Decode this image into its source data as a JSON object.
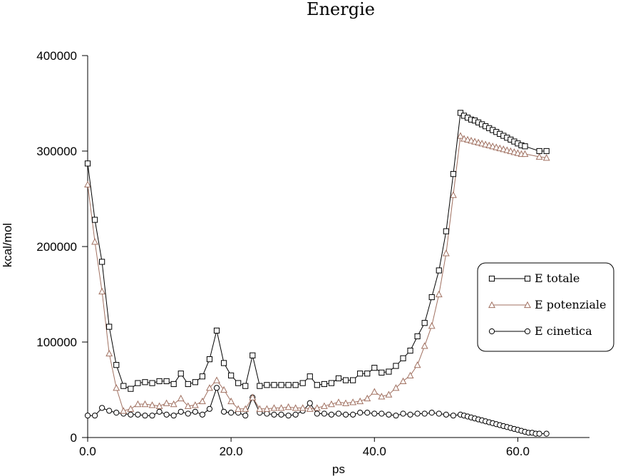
{
  "chart_data": {
    "type": "line",
    "title": "Energie",
    "xlabel": "ps",
    "ylabel": "kcal/mol",
    "xlim": [
      0,
      70
    ],
    "ylim": [
      0,
      400000
    ],
    "x_ticks": [
      0,
      20,
      40,
      60
    ],
    "x_tick_labels": [
      "0.0",
      "20.0",
      "40.0",
      "60.0"
    ],
    "y_ticks": [
      0,
      100000,
      200000,
      300000,
      400000
    ],
    "y_tick_labels": [
      "0",
      "100000",
      "200000",
      "300000",
      "400000"
    ],
    "grid": false,
    "legend_position": "right",
    "series": [
      {
        "name": "E totale",
        "marker": "square",
        "color": "#000000",
        "x": [
          0,
          1,
          2,
          3,
          4,
          5,
          6,
          7,
          8,
          9,
          10,
          11,
          12,
          13,
          14,
          15,
          16,
          17,
          18,
          19,
          20,
          21,
          22,
          23,
          24,
          25,
          26,
          27,
          28,
          29,
          30,
          31,
          32,
          33,
          34,
          35,
          36,
          37,
          38,
          39,
          40,
          41,
          42,
          43,
          44,
          45,
          46,
          47,
          48,
          49,
          50,
          51,
          52,
          52.5,
          53,
          53.5,
          54,
          54.5,
          55,
          55.5,
          56,
          56.5,
          57,
          57.5,
          58,
          58.5,
          59,
          59.5,
          60,
          60.5,
          61,
          63,
          64
        ],
        "y": [
          287000,
          228000,
          184000,
          116000,
          76000,
          54000,
          51000,
          57000,
          58000,
          57000,
          59000,
          59000,
          56000,
          67000,
          56000,
          58000,
          64000,
          82000,
          112000,
          78000,
          65000,
          57000,
          54000,
          86000,
          54000,
          55000,
          55000,
          55000,
          55000,
          55000,
          57000,
          64000,
          55000,
          56000,
          57000,
          62000,
          60000,
          60000,
          67000,
          67000,
          73000,
          68000,
          69000,
          75000,
          83000,
          91000,
          106000,
          120000,
          147000,
          175000,
          216000,
          276000,
          340000,
          337000,
          335000,
          333000,
          332000,
          330000,
          328000,
          326000,
          324000,
          322000,
          320000,
          318000,
          316000,
          314000,
          312000,
          310000,
          308000,
          306000,
          305000,
          300000,
          300000
        ]
      },
      {
        "name": "E potenziale",
        "marker": "triangle",
        "color": "#a07060",
        "x": [
          0,
          1,
          2,
          3,
          4,
          5,
          6,
          7,
          8,
          9,
          10,
          11,
          12,
          13,
          14,
          15,
          16,
          17,
          18,
          19,
          20,
          21,
          22,
          23,
          24,
          25,
          26,
          27,
          28,
          29,
          30,
          31,
          32,
          33,
          34,
          35,
          36,
          37,
          38,
          39,
          40,
          41,
          42,
          43,
          44,
          45,
          46,
          47,
          48,
          49,
          50,
          51,
          52,
          52.5,
          53,
          53.5,
          54,
          54.5,
          55,
          55.5,
          56,
          56.5,
          57,
          57.5,
          58,
          58.5,
          59,
          59.5,
          60,
          60.5,
          61,
          63,
          64
        ],
        "y": [
          265000,
          205000,
          153000,
          88000,
          52000,
          28000,
          30000,
          35000,
          35000,
          34000,
          33000,
          36000,
          35000,
          41000,
          33000,
          34000,
          38000,
          52000,
          60000,
          50000,
          38000,
          30000,
          30000,
          42000,
          30000,
          30000,
          31000,
          31000,
          32000,
          31000,
          31000,
          30000,
          31000,
          33000,
          35000,
          37000,
          36000,
          37000,
          38000,
          41000,
          48000,
          43000,
          45000,
          52000,
          59000,
          65000,
          76000,
          96000,
          117000,
          150000,
          193000,
          254000,
          316000,
          313000,
          312000,
          311000,
          310000,
          309000,
          308000,
          307000,
          306000,
          305000,
          304000,
          303000,
          302000,
          301000,
          300000,
          299000,
          298000,
          297000,
          297000,
          294000,
          293000
        ]
      },
      {
        "name": "E cinetica",
        "marker": "circle",
        "color": "#000000",
        "x": [
          0,
          1,
          2,
          3,
          4,
          5,
          6,
          7,
          8,
          9,
          10,
          11,
          12,
          13,
          14,
          15,
          16,
          17,
          18,
          19,
          20,
          21,
          22,
          23,
          24,
          25,
          26,
          27,
          28,
          29,
          30,
          31,
          32,
          33,
          34,
          35,
          36,
          37,
          38,
          39,
          40,
          41,
          42,
          43,
          44,
          45,
          46,
          47,
          48,
          49,
          50,
          51,
          52,
          52.5,
          53,
          53.5,
          54,
          54.5,
          55,
          55.5,
          56,
          56.5,
          57,
          57.5,
          58,
          58.5,
          59,
          59.5,
          60,
          60.5,
          61,
          61.5,
          62,
          62.5,
          63,
          64
        ],
        "y": [
          23000,
          23000,
          31000,
          28000,
          26000,
          25000,
          24000,
          24000,
          23000,
          23000,
          27000,
          24000,
          23000,
          27000,
          25000,
          27000,
          24000,
          30000,
          52000,
          27000,
          26000,
          26000,
          23000,
          42000,
          26000,
          25000,
          24000,
          24000,
          23000,
          24000,
          28000,
          36000,
          25000,
          25000,
          24000,
          25000,
          24000,
          24000,
          26000,
          26000,
          25000,
          25000,
          24000,
          23000,
          25000,
          24000,
          25000,
          25000,
          26000,
          25000,
          24000,
          23000,
          24000,
          23000,
          22000,
          21000,
          20000,
          19000,
          18000,
          17000,
          16000,
          15000,
          14000,
          13000,
          12000,
          11000,
          10000,
          9000,
          8000,
          7000,
          6000,
          5000,
          5000,
          4000,
          4000,
          4000
        ]
      }
    ]
  }
}
